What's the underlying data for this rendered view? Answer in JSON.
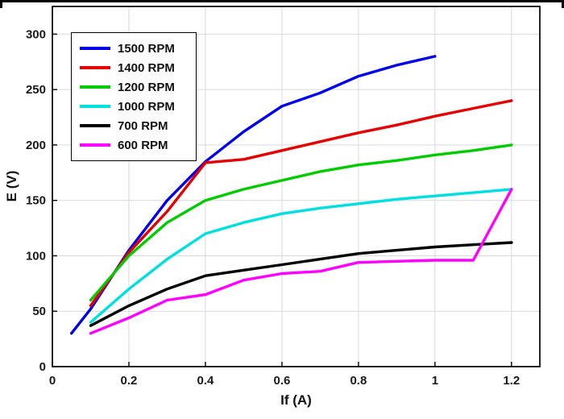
{
  "chart_data": {
    "type": "line",
    "title": "",
    "xlabel": "If (A)",
    "ylabel": "E (V)",
    "xlim": [
      0,
      1.274
    ],
    "ylim": [
      0,
      325
    ],
    "x_ticks": [
      0,
      0.2,
      0.4,
      0.6,
      0.8,
      1,
      1.2
    ],
    "y_ticks": [
      0,
      50,
      100,
      150,
      200,
      250,
      300
    ],
    "grid": true,
    "legend_position": "top-left",
    "series": [
      {
        "name": "1500 RPM",
        "color": "#0000ee",
        "points": [
          [
            0.05,
            30
          ],
          [
            0.1,
            52
          ],
          [
            0.2,
            105
          ],
          [
            0.3,
            150
          ],
          [
            0.4,
            185
          ],
          [
            0.5,
            212
          ],
          [
            0.6,
            235
          ],
          [
            0.7,
            247
          ],
          [
            0.8,
            262
          ],
          [
            0.9,
            272
          ],
          [
            1.0,
            280
          ]
        ]
      },
      {
        "name": "1400 RPM",
        "color": "#e60000",
        "points": [
          [
            0.1,
            55
          ],
          [
            0.2,
            103
          ],
          [
            0.3,
            140
          ],
          [
            0.4,
            184
          ],
          [
            0.5,
            187
          ],
          [
            0.6,
            195
          ],
          [
            0.7,
            203
          ],
          [
            0.8,
            211
          ],
          [
            0.9,
            218
          ],
          [
            1.0,
            226
          ],
          [
            1.1,
            233
          ],
          [
            1.2,
            240
          ]
        ]
      },
      {
        "name": "1200 RPM",
        "color": "#00cc00",
        "points": [
          [
            0.1,
            60
          ],
          [
            0.2,
            100
          ],
          [
            0.3,
            130
          ],
          [
            0.4,
            150
          ],
          [
            0.5,
            160
          ],
          [
            0.6,
            168
          ],
          [
            0.7,
            176
          ],
          [
            0.8,
            182
          ],
          [
            0.9,
            186
          ],
          [
            1.0,
            191
          ],
          [
            1.1,
            195
          ],
          [
            1.2,
            200
          ]
        ]
      },
      {
        "name": "1000 RPM",
        "color": "#00e0e0",
        "points": [
          [
            0.1,
            40
          ],
          [
            0.2,
            70
          ],
          [
            0.3,
            97
          ],
          [
            0.4,
            120
          ],
          [
            0.5,
            130
          ],
          [
            0.6,
            138
          ],
          [
            0.7,
            143
          ],
          [
            0.8,
            147
          ],
          [
            0.9,
            151
          ],
          [
            1.0,
            154
          ],
          [
            1.1,
            157
          ],
          [
            1.2,
            160
          ]
        ]
      },
      {
        "name": "700 RPM",
        "color": "#000000",
        "points": [
          [
            0.1,
            37
          ],
          [
            0.2,
            55
          ],
          [
            0.3,
            70
          ],
          [
            0.4,
            82
          ],
          [
            0.5,
            87
          ],
          [
            0.6,
            92
          ],
          [
            0.7,
            97
          ],
          [
            0.8,
            102
          ],
          [
            0.9,
            105
          ],
          [
            1.0,
            108
          ],
          [
            1.1,
            110
          ],
          [
            1.2,
            112
          ]
        ]
      },
      {
        "name": "600 RPM",
        "color": "#ff00ff",
        "points": [
          [
            0.1,
            30
          ],
          [
            0.2,
            44
          ],
          [
            0.3,
            60
          ],
          [
            0.4,
            65
          ],
          [
            0.5,
            78
          ],
          [
            0.6,
            84
          ],
          [
            0.7,
            86
          ],
          [
            0.8,
            94
          ],
          [
            0.9,
            95
          ],
          [
            1.0,
            96
          ],
          [
            1.1,
            96
          ],
          [
            1.2,
            160
          ]
        ]
      }
    ]
  }
}
